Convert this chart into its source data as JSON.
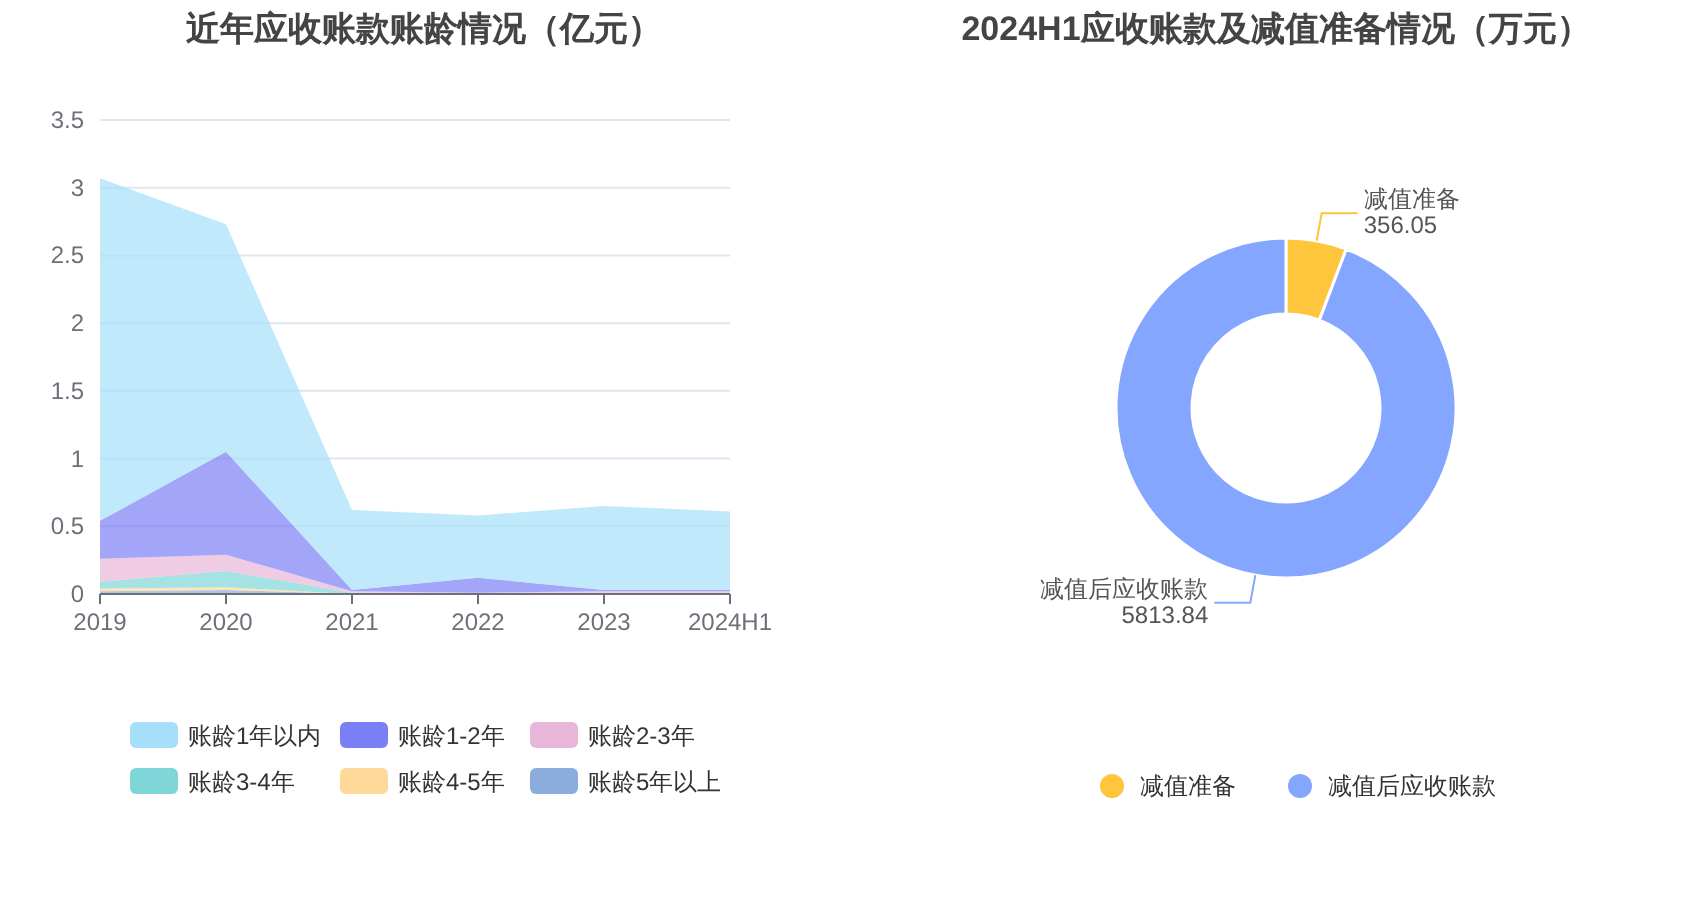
{
  "chart_data": [
    {
      "type": "area",
      "title": "近年应收账款账龄情况（亿元）",
      "stacked": true,
      "categories": [
        "2019",
        "2020",
        "2021",
        "2022",
        "2023",
        "2024H1"
      ],
      "ylim": [
        0,
        3.5
      ],
      "yticks": [
        0,
        0.5,
        1,
        1.5,
        2,
        2.5,
        3,
        3.5
      ],
      "grid": "y",
      "legend": "bottom",
      "series": [
        {
          "name": "账龄5年以上",
          "color": "#8badde",
          "values": [
            0.02,
            0.03,
            0,
            0,
            0,
            0
          ]
        },
        {
          "name": "账龄4-5年",
          "color": "#fdd898",
          "values": [
            0.02,
            0.02,
            0,
            0,
            0,
            0
          ]
        },
        {
          "name": "账龄3-4年",
          "color": "#7fd6d8",
          "values": [
            0.05,
            0.12,
            0.01,
            0,
            0,
            0
          ]
        },
        {
          "name": "账龄2-3年",
          "color": "#e8b6d8",
          "values": [
            0.17,
            0.12,
            0.01,
            0.01,
            0.02,
            0.02
          ]
        },
        {
          "name": "账龄1-2年",
          "color": "#7b7ff5",
          "values": [
            0.28,
            0.76,
            0.01,
            0.11,
            0.01,
            0.01
          ]
        },
        {
          "name": "账龄1年以内",
          "color": "#a5dff9",
          "values": [
            2.53,
            1.68,
            0.59,
            0.46,
            0.62,
            0.58
          ]
        }
      ]
    },
    {
      "type": "donut",
      "title": "2024H1应收账款及减值准备情况（万元）",
      "categories": [
        "减值准备",
        "减值后应收账款"
      ],
      "values": [
        356.05,
        5813.84
      ],
      "colors": [
        "#ffc53d",
        "#84a6fe"
      ],
      "data_labels": true,
      "legend": "bottom"
    }
  ]
}
